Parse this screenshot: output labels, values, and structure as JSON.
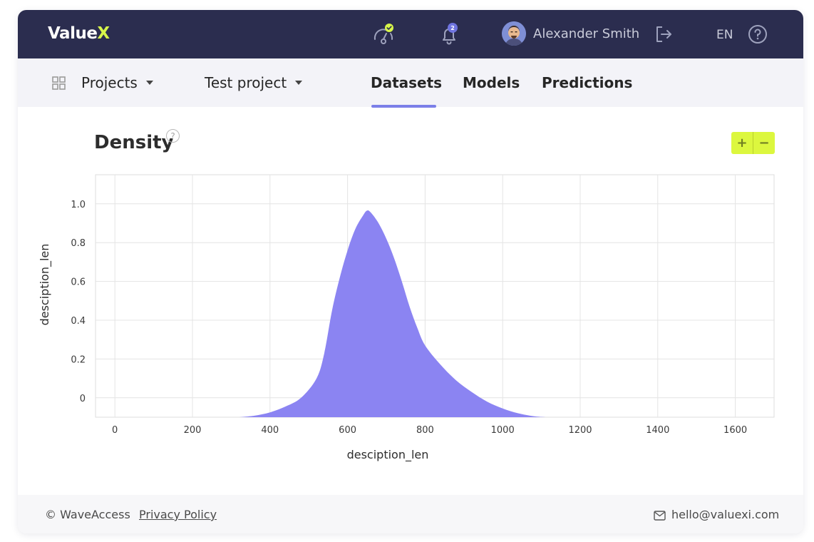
{
  "app": {
    "logo_main": "Value",
    "logo_accent": "X"
  },
  "header": {
    "notification_count": "2",
    "user_name": "Alexander Smith",
    "language": "EN"
  },
  "nav": {
    "projects_label": "Projects",
    "project_label": "Test project",
    "tabs": [
      {
        "label": "Datasets",
        "active": true
      },
      {
        "label": "Models",
        "active": false
      },
      {
        "label": "Predictions",
        "active": false
      }
    ]
  },
  "panel": {
    "title": "Density",
    "zoom_in": "+",
    "zoom_out": "−"
  },
  "chart_data": {
    "type": "area",
    "title": "Density",
    "xlabel": "desciption_len",
    "ylabel": "desciption_len",
    "xlim": [
      -50,
      1700
    ],
    "ylim": [
      -0.1,
      1.15
    ],
    "x_ticks": [
      0,
      200,
      400,
      600,
      800,
      1000,
      1200,
      1400,
      1600
    ],
    "y_ticks": [
      0,
      0.2,
      0.4,
      0.6,
      0.8,
      1.0
    ],
    "y_tick_labels": [
      "0",
      "0.2",
      "0.4",
      "0.6",
      "0.8",
      "1.0"
    ],
    "grid": true,
    "baseline": -0.1,
    "color": "#8b84f2",
    "series": [
      {
        "name": "desciption_len",
        "x": [
          320,
          360,
          400,
          440,
          480,
          520,
          540,
          560,
          580,
          600,
          620,
          640,
          650,
          660,
          680,
          700,
          720,
          740,
          760,
          780,
          800,
          840,
          880,
          920,
          960,
          1000,
          1040,
          1080,
          1110
        ],
        "y": [
          -0.1,
          -0.092,
          -0.075,
          -0.045,
          0.0,
          0.1,
          0.23,
          0.45,
          0.62,
          0.76,
          0.87,
          0.94,
          0.965,
          0.955,
          0.9,
          0.82,
          0.72,
          0.6,
          0.47,
          0.36,
          0.27,
          0.17,
          0.09,
          0.03,
          -0.02,
          -0.055,
          -0.08,
          -0.095,
          -0.1
        ]
      }
    ]
  },
  "footer": {
    "copyright": "© WaveAccess",
    "privacy": "Privacy Policy",
    "email": "hello@valuexi.com"
  },
  "colors": {
    "header_bg": "#2b2d4f",
    "accent": "#dcf73e",
    "tab_underline": "#7b7fe8",
    "density_fill": "#8b84f2"
  },
  "icons": {
    "status": "speedometer-check-icon",
    "notifications": "bell-icon",
    "logout": "logout-icon",
    "help": "help-circle-icon",
    "grid": "grid-icon",
    "mail": "mail-icon"
  }
}
